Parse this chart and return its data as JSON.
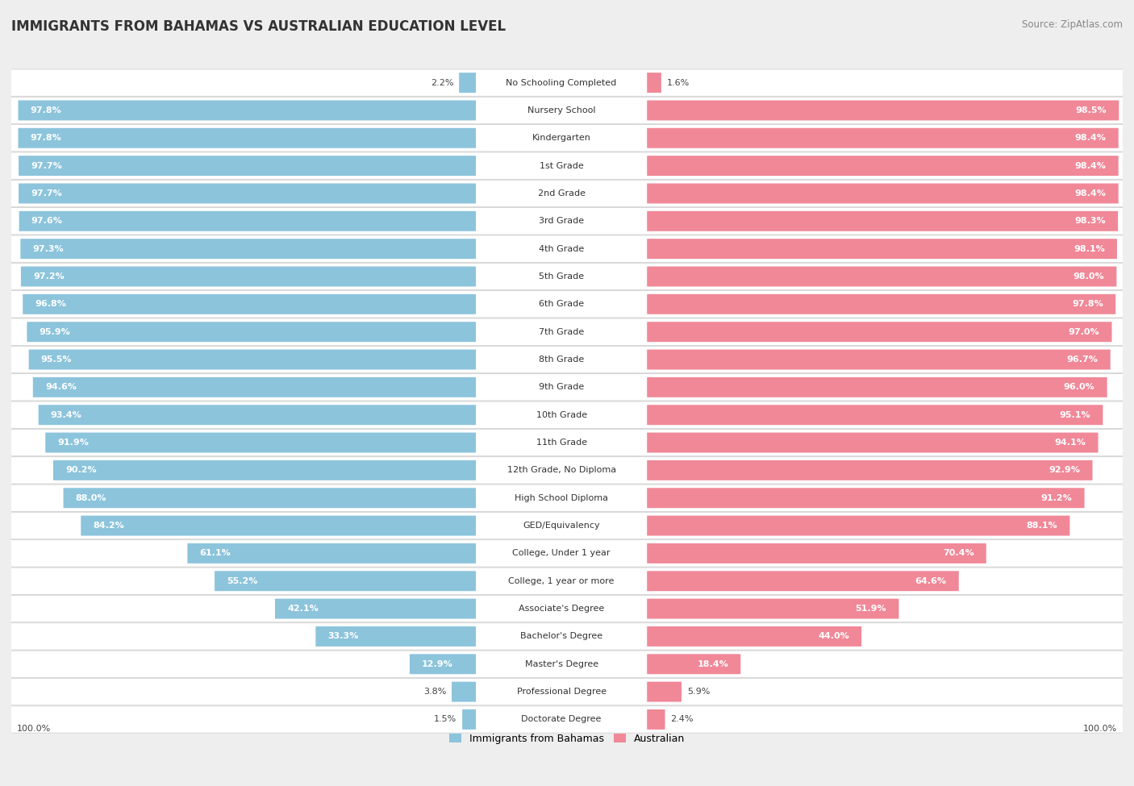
{
  "title": "IMMIGRANTS FROM BAHAMAS VS AUSTRALIAN EDUCATION LEVEL",
  "source": "Source: ZipAtlas.com",
  "categories": [
    "No Schooling Completed",
    "Nursery School",
    "Kindergarten",
    "1st Grade",
    "2nd Grade",
    "3rd Grade",
    "4th Grade",
    "5th Grade",
    "6th Grade",
    "7th Grade",
    "8th Grade",
    "9th Grade",
    "10th Grade",
    "11th Grade",
    "12th Grade, No Diploma",
    "High School Diploma",
    "GED/Equivalency",
    "College, Under 1 year",
    "College, 1 year or more",
    "Associate's Degree",
    "Bachelor's Degree",
    "Master's Degree",
    "Professional Degree",
    "Doctorate Degree"
  ],
  "bahamas": [
    2.2,
    97.8,
    97.8,
    97.7,
    97.7,
    97.6,
    97.3,
    97.2,
    96.8,
    95.9,
    95.5,
    94.6,
    93.4,
    91.9,
    90.2,
    88.0,
    84.2,
    61.1,
    55.2,
    42.1,
    33.3,
    12.9,
    3.8,
    1.5
  ],
  "australian": [
    1.6,
    98.5,
    98.4,
    98.4,
    98.4,
    98.3,
    98.1,
    98.0,
    97.8,
    97.0,
    96.7,
    96.0,
    95.1,
    94.1,
    92.9,
    91.2,
    88.1,
    70.4,
    64.6,
    51.9,
    44.0,
    18.4,
    5.9,
    2.4
  ],
  "bahamas_color": "#8CC4DC",
  "australian_color": "#F08898",
  "background_color": "#eeeeee",
  "bar_bg_color": "#ffffff",
  "legend_bahamas": "Immigrants from Bahamas",
  "legend_australian": "Australian",
  "title_fontsize": 12,
  "source_fontsize": 8.5,
  "label_fontsize": 8,
  "category_fontsize": 8
}
